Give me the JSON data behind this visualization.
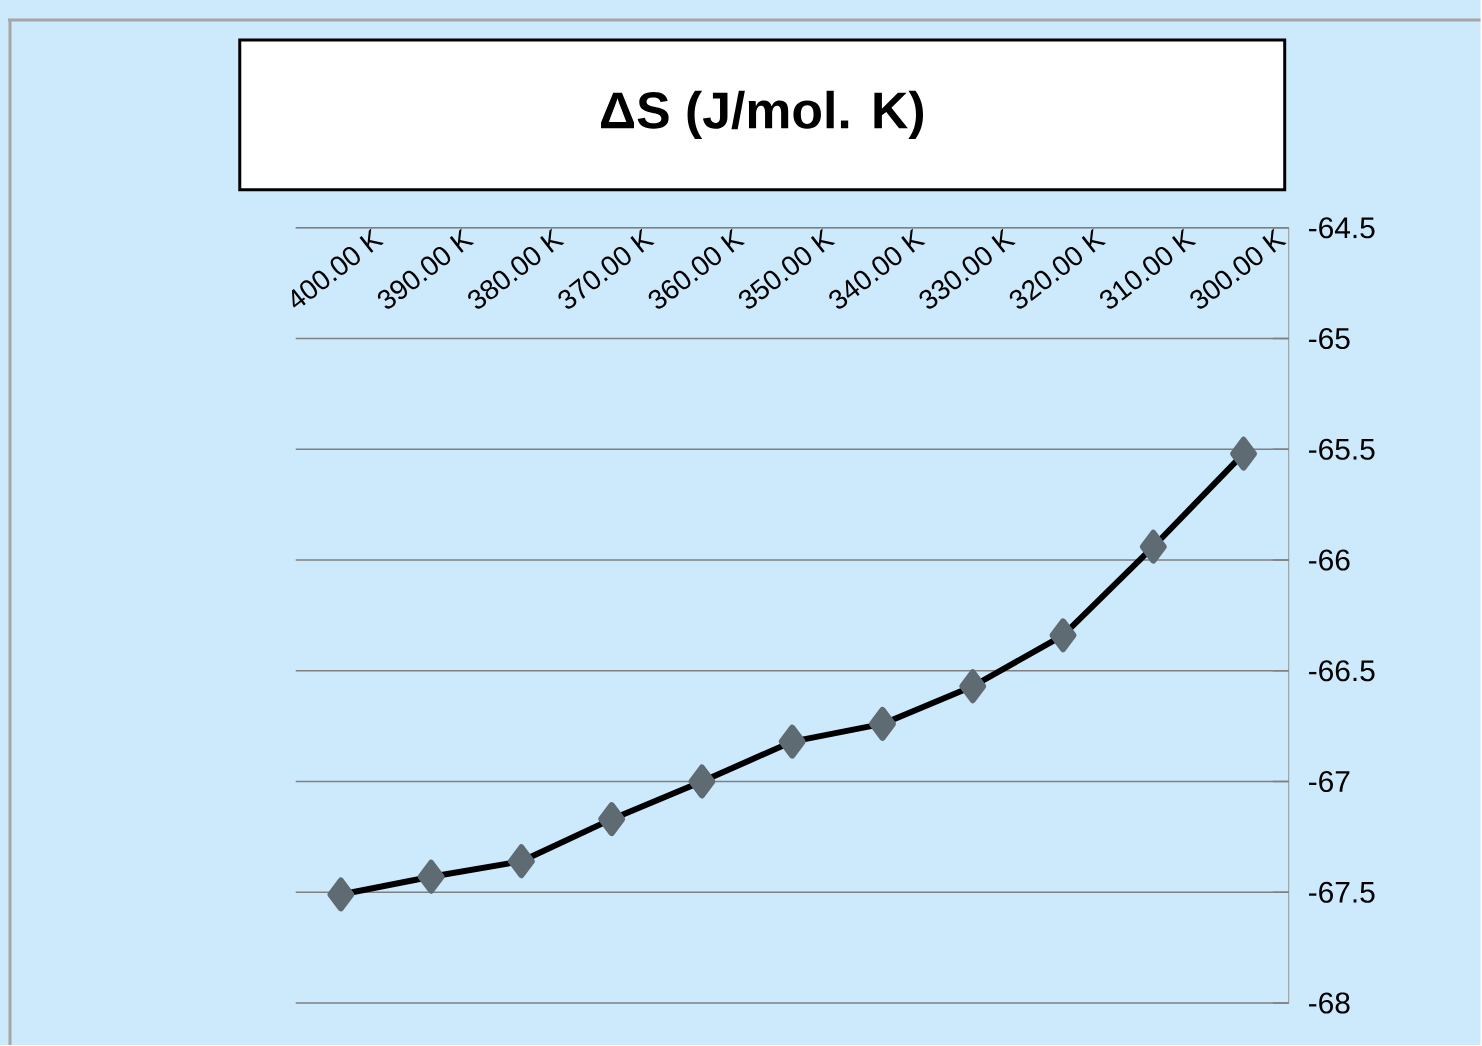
{
  "chart_data": {
    "type": "line",
    "title": "ΔS (J/mol. K)",
    "categories": [
      "400.00 K",
      "390.00 K",
      "380.00 K",
      "370.00 K",
      "360.00 K",
      "350.00 K",
      "340.00 K",
      "330.00 K",
      "320.00 K",
      "310.00 K",
      "300.00 K"
    ],
    "series": [
      {
        "color": "#000000",
        "values": [
          -67.51,
          -67.43,
          -67.36,
          -67.17,
          -67.0,
          -66.82,
          -66.74,
          -66.57,
          -66.34,
          -65.94,
          -65.52
        ]
      }
    ],
    "ylim": [
      -68,
      -64.5
    ],
    "yticks": [
      -68,
      -67.5,
      -67,
      -66.5,
      -66,
      -65.5,
      -65,
      -64.5
    ],
    "grid": "y",
    "marker": "diamond",
    "line_style": "solid"
  }
}
